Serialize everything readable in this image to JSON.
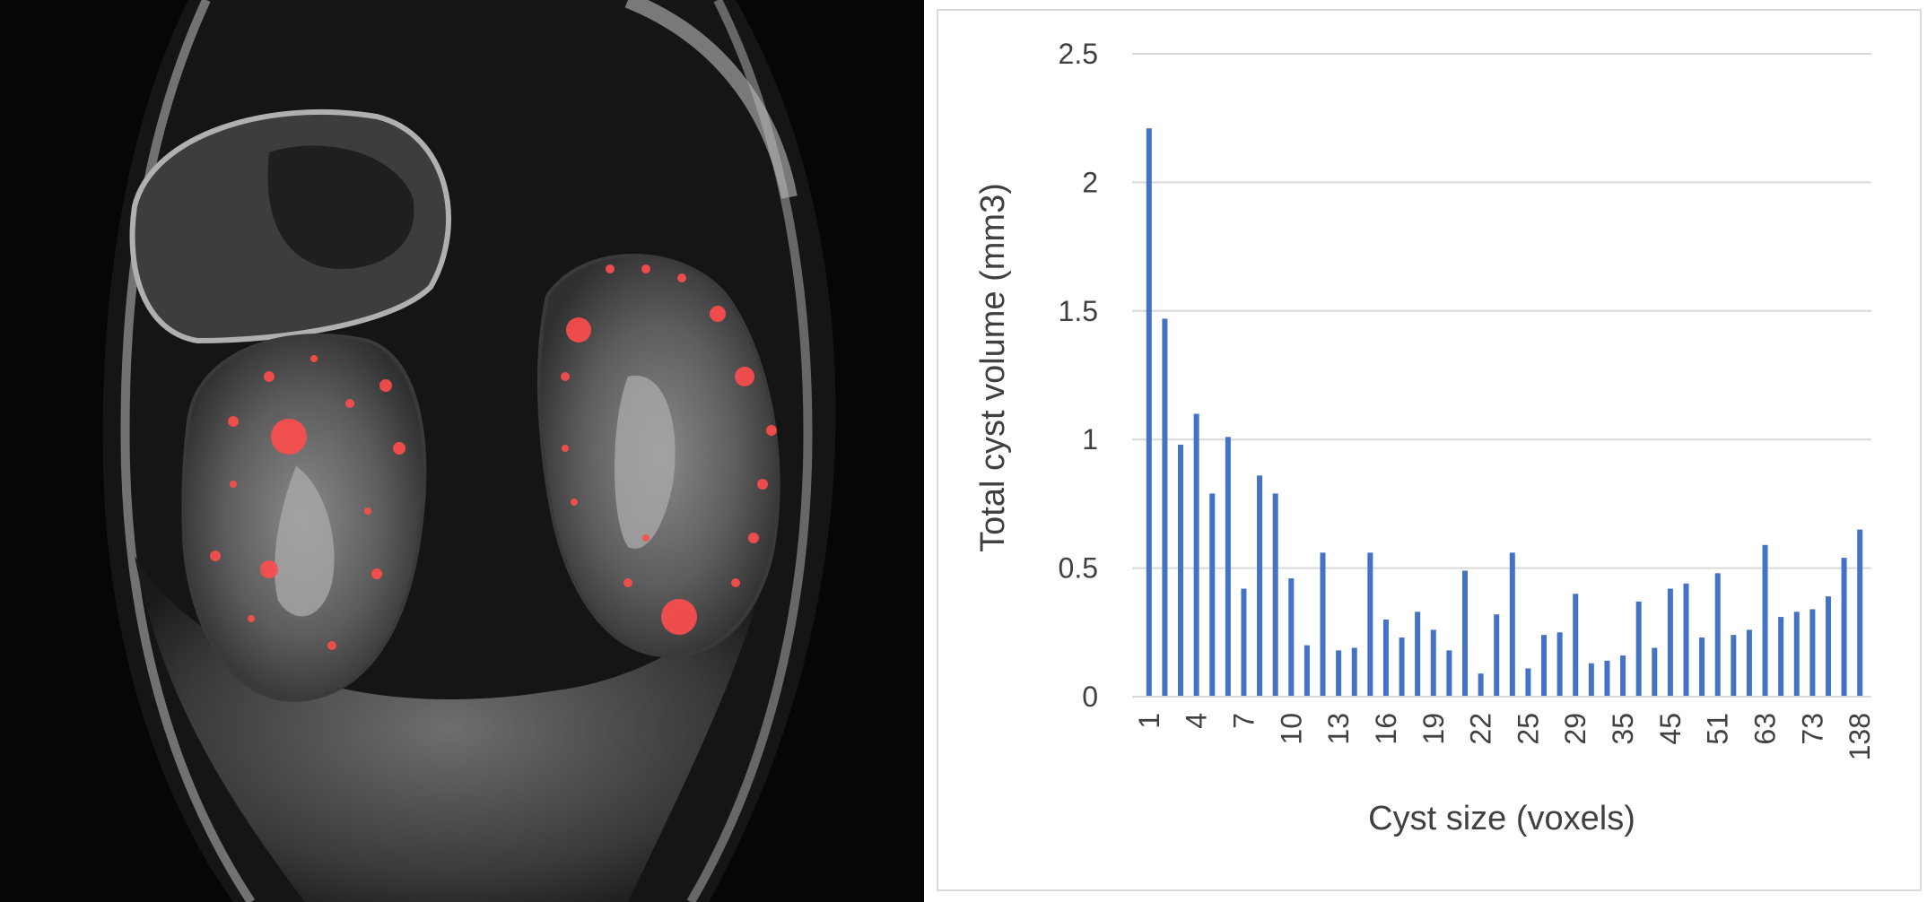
{
  "left_panel": {
    "type": "MRI coronal slice with red cyst overlay",
    "overlay_color": "#ff4d4d"
  },
  "chart_data": {
    "type": "bar",
    "xlabel": "Cyst size (voxels)",
    "ylabel": "Total cyst volume (mm3)",
    "ylim": [
      0,
      2.5
    ],
    "yticks": [
      "0",
      "0.5",
      "1",
      "1.5",
      "2",
      "2.5"
    ],
    "xtick_labels": [
      "1",
      "4",
      "7",
      "10",
      "13",
      "16",
      "19",
      "22",
      "25",
      "29",
      "35",
      "45",
      "51",
      "63",
      "73",
      "138"
    ],
    "values": [
      2.21,
      1.47,
      0.98,
      1.1,
      0.79,
      1.01,
      0.42,
      0.86,
      0.79,
      0.46,
      0.2,
      0.56,
      0.18,
      0.19,
      0.56,
      0.3,
      0.23,
      0.33,
      0.26,
      0.18,
      0.49,
      0.09,
      0.32,
      0.56,
      0.11,
      0.24,
      0.25,
      0.4,
      0.13,
      0.14,
      0.16,
      0.37,
      0.19,
      0.42,
      0.44,
      0.23,
      0.48,
      0.24,
      0.26,
      0.59,
      0.31,
      0.33,
      0.34,
      0.39,
      0.54,
      0.65
    ],
    "bar_color": "#4472c4",
    "gridlines": true,
    "legend": "none"
  }
}
